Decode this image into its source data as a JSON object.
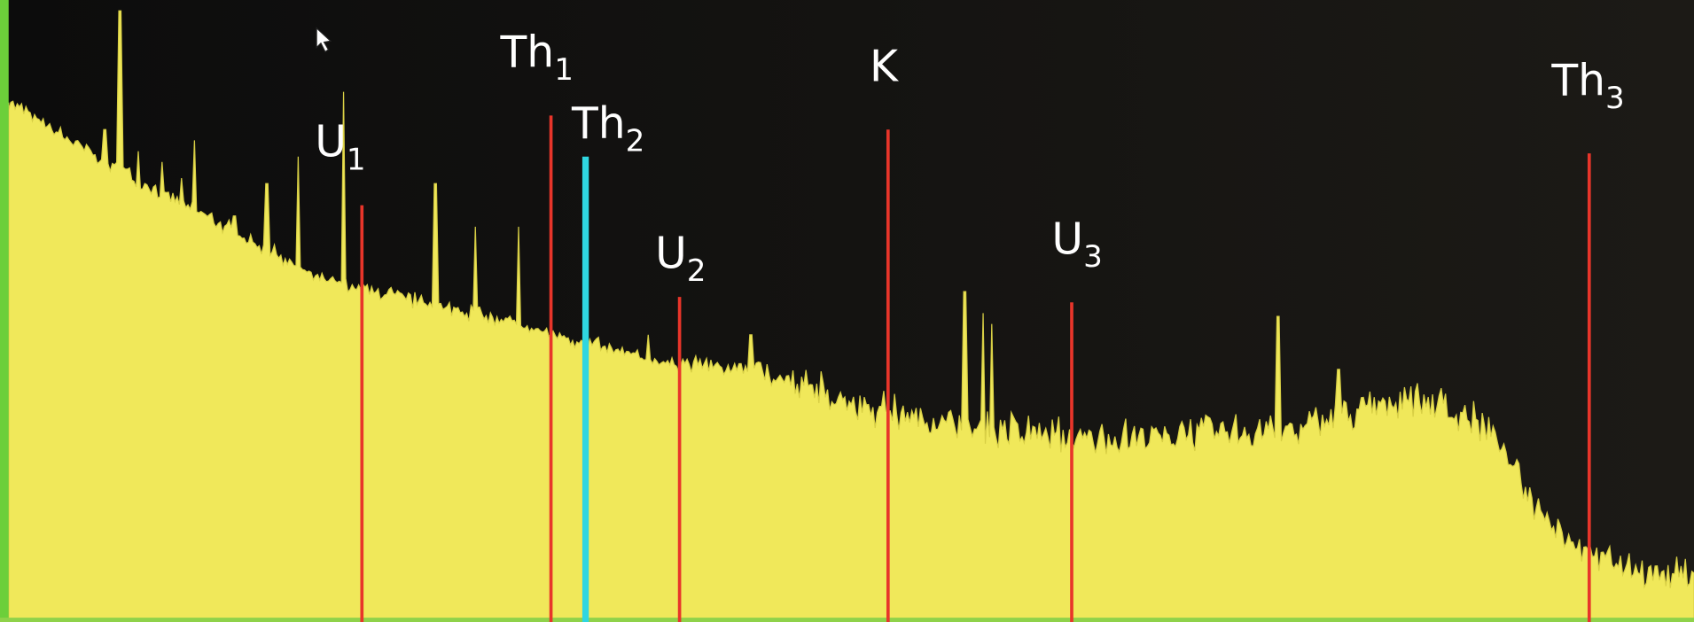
{
  "markers": [
    {
      "symbol": "U",
      "subscript": "1"
    },
    {
      "symbol": "Th",
      "subscript": "1"
    },
    {
      "symbol": "Th",
      "subscript": "2"
    },
    {
      "symbol": "U",
      "subscript": "2"
    },
    {
      "symbol": "K",
      "subscript": null
    },
    {
      "symbol": "U",
      "subscript": "3"
    },
    {
      "symbol": "Th",
      "subscript": "3"
    }
  ]
}
